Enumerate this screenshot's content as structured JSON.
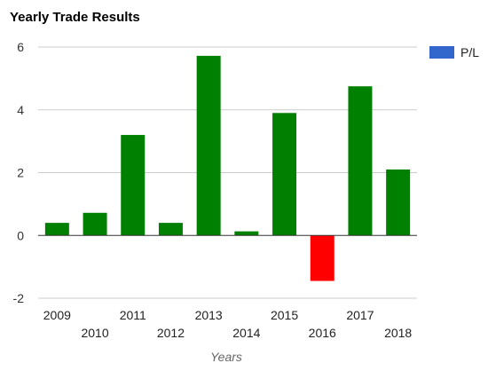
{
  "chart_data": {
    "type": "bar",
    "title": "Yearly Trade Results",
    "xlabel": "Years",
    "ylabel": "",
    "categories": [
      "2009",
      "2010",
      "2011",
      "2012",
      "2013",
      "2014",
      "2015",
      "2016",
      "2017",
      "2018"
    ],
    "series": [
      {
        "name": "P/L",
        "values": [
          0.4,
          0.72,
          3.2,
          0.4,
          5.72,
          0.13,
          3.9,
          -1.45,
          4.75,
          2.1
        ],
        "legend_color": "#3366cc"
      }
    ],
    "positive_color": "#008000",
    "negative_color": "#ff0000",
    "ylim": [
      -2,
      6
    ],
    "yticks": [
      "6",
      "4",
      "2",
      "0",
      "-2"
    ],
    "ytick_values": [
      6,
      4,
      2,
      0,
      -2
    ],
    "grid": true,
    "legend_position": "right"
  }
}
